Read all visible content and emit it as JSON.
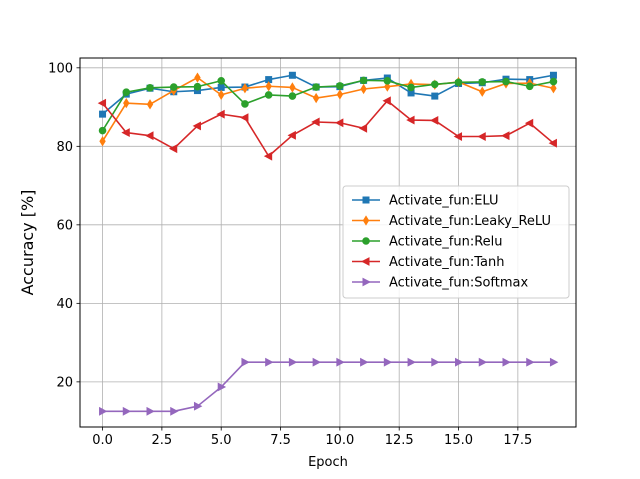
{
  "chart_data": {
    "type": "line",
    "title": "",
    "xlabel": "Epoch",
    "ylabel": "Accuracy [%]",
    "xlim": [
      -0.95,
      19.95
    ],
    "ylim": [
      8.5,
      102.5
    ],
    "xticks": [
      0,
      2.5,
      5,
      7.5,
      10,
      12.5,
      15,
      17.5
    ],
    "xtick_labels": [
      "0.0",
      "2.5",
      "5.0",
      "7.5",
      "10.0",
      "12.5",
      "15.0",
      "17.5"
    ],
    "yticks": [
      20,
      40,
      60,
      80,
      100
    ],
    "ytick_labels": [
      "20",
      "40",
      "60",
      "80",
      "100"
    ],
    "grid": true,
    "legend_position": "center-right",
    "x": [
      0,
      1,
      2,
      3,
      4,
      5,
      6,
      7,
      8,
      9,
      10,
      11,
      12,
      13,
      14,
      15,
      16,
      17,
      18,
      19
    ],
    "series": [
      {
        "name": "Activate_fun:ELU",
        "color": "#1f77b4",
        "marker": "square",
        "values": [
          88.2,
          93.3,
          94.8,
          93.9,
          94.2,
          95.0,
          95.1,
          97.0,
          98.1,
          95.1,
          95.2,
          96.8,
          97.4,
          93.6,
          92.8,
          96.0,
          96.2,
          97.1,
          97.0,
          98.1
        ]
      },
      {
        "name": "Activate_fun:Leaky_ReLU",
        "color": "#ff7f0e",
        "marker": "thin-diamond",
        "values": [
          81.3,
          91.0,
          90.7,
          94.2,
          97.5,
          93.1,
          94.8,
          95.3,
          95.0,
          92.3,
          93.2,
          94.6,
          95.2,
          95.9,
          95.7,
          96.4,
          93.9,
          96.0,
          96.1,
          94.8
        ]
      },
      {
        "name": "Activate_fun:Relu",
        "color": "#2ca02c",
        "marker": "circle",
        "values": [
          84.0,
          93.8,
          94.9,
          95.1,
          95.2,
          96.7,
          90.8,
          93.1,
          92.8,
          95.1,
          95.4,
          96.8,
          96.7,
          95.0,
          95.8,
          96.3,
          96.4,
          96.5,
          95.3,
          96.5
        ]
      },
      {
        "name": "Activate_fun:Tanh",
        "color": "#d62728",
        "marker": "triangle-left",
        "values": [
          91.0,
          83.5,
          82.7,
          79.4,
          85.2,
          88.2,
          87.3,
          77.5,
          82.8,
          86.2,
          86.0,
          84.6,
          91.6,
          86.7,
          86.6,
          82.5,
          82.5,
          82.7,
          85.9,
          80.8
        ]
      },
      {
        "name": "Activate_fun:Softmax",
        "color": "#9467bd",
        "marker": "triangle-right",
        "values": [
          12.5,
          12.5,
          12.5,
          12.5,
          13.8,
          18.7,
          25.0,
          25.0,
          25.0,
          25.0,
          25.0,
          25.0,
          25.0,
          25.0,
          25.0,
          25.0,
          25.0,
          25.0,
          25.0,
          25.0
        ]
      }
    ]
  }
}
